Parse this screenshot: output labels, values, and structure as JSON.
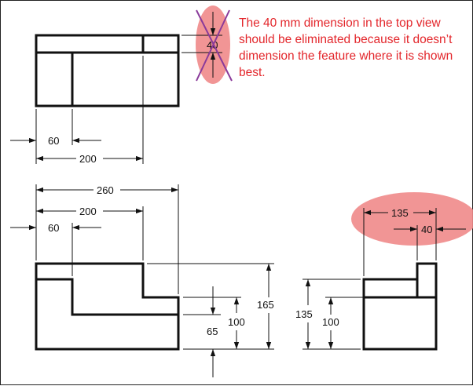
{
  "annotation": {
    "text": "The 40 mm dimension in the top view should be eliminated because it doesn’t dimension the feature where it is shown best.",
    "highlight_color": "#f08a8a",
    "text_color": "#e3262b",
    "strike_color": "#8a3a9a"
  },
  "top_view": {
    "dims": {
      "d60": "60",
      "d200": "200",
      "d40_crossed": "40"
    }
  },
  "front_view": {
    "dims": {
      "d260": "260",
      "d200": "200",
      "d60": "60",
      "d165": "165",
      "d100": "100",
      "d65": "65"
    }
  },
  "side_view": {
    "dims": {
      "d135_height": "135",
      "d100": "100",
      "d135_width": "135",
      "d40": "40"
    }
  }
}
